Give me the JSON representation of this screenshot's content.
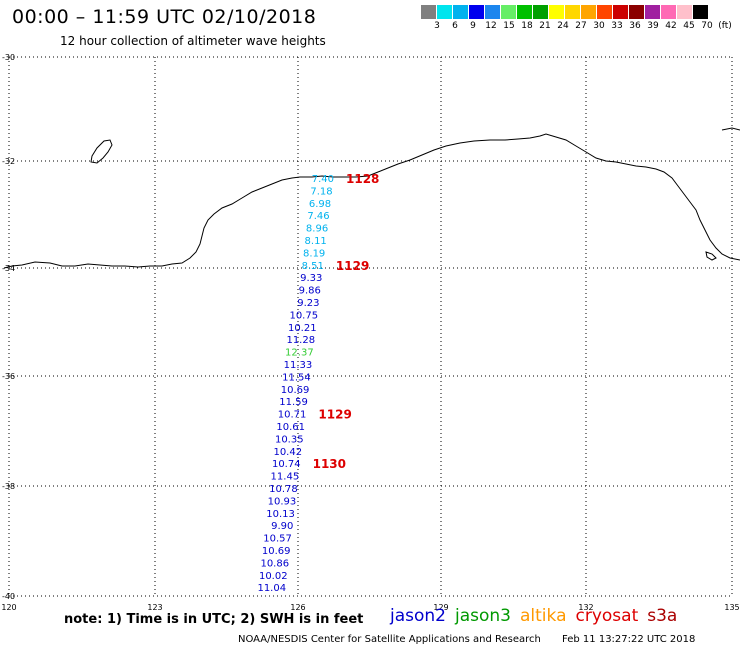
{
  "header": {
    "title": "00:00 – 11:59 UTC 02/10/2018",
    "subtitle": "12 hour collection of altimeter wave heights"
  },
  "color_scale": {
    "swatches": [
      "#808080",
      "#00e5ee",
      "#00b2ee",
      "#0000ee",
      "#1c86ee",
      "#66ee66",
      "#00c000",
      "#00a000",
      "#ffff00",
      "#ffd700",
      "#ffa500",
      "#ff4500",
      "#cc0000",
      "#8b0000",
      "#a020a0",
      "#ff69b4",
      "#ffc0cb",
      "#000000"
    ],
    "labels": [
      "3",
      "6",
      "9",
      "12",
      "15",
      "18",
      "21",
      "24",
      "27",
      "30",
      "33",
      "36",
      "39",
      "42",
      "45",
      "70",
      "(ft)"
    ]
  },
  "axes": {
    "lat_labels": [
      "-30",
      "-32",
      "-34",
      "-36",
      "-38",
      "-40"
    ],
    "lon_labels": [
      "120",
      "123",
      "126",
      "129",
      "132",
      "135"
    ]
  },
  "wave_labels": [
    {
      "text": "7.40",
      "color": "#00b2ee"
    },
    {
      "text": "7.18",
      "color": "#00b2ee"
    },
    {
      "text": "6.98",
      "color": "#00b2ee"
    },
    {
      "text": "7.46",
      "color": "#00b2ee"
    },
    {
      "text": "8.96",
      "color": "#00b2ee"
    },
    {
      "text": "8.11",
      "color": "#00b2ee"
    },
    {
      "text": "8.19",
      "color": "#00b2ee"
    },
    {
      "text": "8.51",
      "color": "#00b2ee"
    },
    {
      "text": "9.33",
      "color": "#0000cc"
    },
    {
      "text": "9.86",
      "color": "#0000cc"
    },
    {
      "text": "9.23",
      "color": "#0000cc"
    },
    {
      "text": "10.75",
      "color": "#0000cc"
    },
    {
      "text": "10.21",
      "color": "#0000cc"
    },
    {
      "text": "11.28",
      "color": "#0000cc"
    },
    {
      "text": "12.37",
      "color": "#33cc33"
    },
    {
      "text": "11.33",
      "color": "#0000cc"
    },
    {
      "text": "11.54",
      "color": "#0000cc"
    },
    {
      "text": "10.69",
      "color": "#0000cc"
    },
    {
      "text": "11.59",
      "color": "#0000cc"
    },
    {
      "text": "10.71",
      "color": "#0000cc"
    },
    {
      "text": "10.61",
      "color": "#0000cc"
    },
    {
      "text": "10.35",
      "color": "#0000cc"
    },
    {
      "text": "10.42",
      "color": "#0000cc"
    },
    {
      "text": "10.74",
      "color": "#0000cc"
    },
    {
      "text": "11.45",
      "color": "#0000cc"
    },
    {
      "text": "10.78",
      "color": "#0000cc"
    },
    {
      "text": "10.93",
      "color": "#0000cc"
    },
    {
      "text": "10.13",
      "color": "#0000cc"
    },
    {
      "text": "9.90",
      "color": "#0000cc"
    },
    {
      "text": "10.57",
      "color": "#0000cc"
    },
    {
      "text": "10.69",
      "color": "#0000cc"
    },
    {
      "text": "10.86",
      "color": "#0000cc"
    },
    {
      "text": "10.02",
      "color": "#0000cc"
    },
    {
      "text": "11.04",
      "color": "#0000cc"
    }
  ],
  "time_labels": [
    "1128",
    "1129",
    "1129",
    "1130"
  ],
  "time_label_color": "#dd0000",
  "note": "note: 1) Time is in UTC; 2) SWH is in feet",
  "legend": [
    {
      "label": "jason2",
      "color": "#0000cc"
    },
    {
      "label": "jason3",
      "color": "#009900"
    },
    {
      "label": "altika",
      "color": "#ff9900"
    },
    {
      "label": "cryosat",
      "color": "#dd0000"
    },
    {
      "label": "s3a",
      "color": "#aa0000"
    }
  ],
  "footer": {
    "credit": "NOAA/NESDIS Center for Satellite Applications and Research",
    "timestamp": "Feb 11 13:27:22 UTC 2018"
  }
}
